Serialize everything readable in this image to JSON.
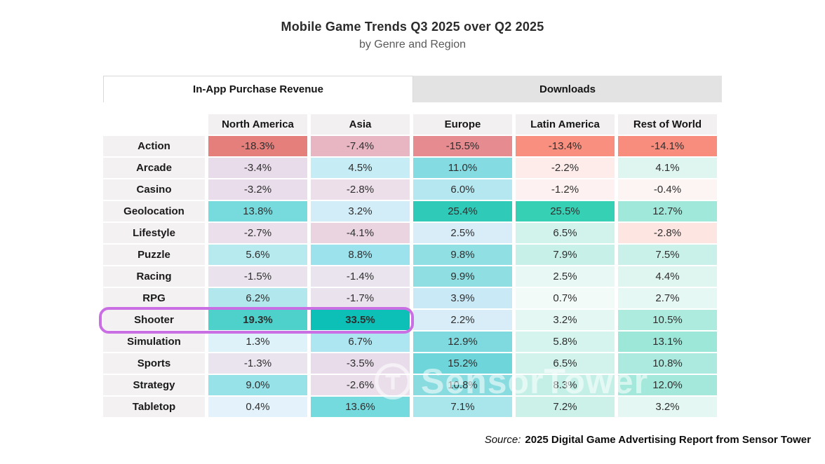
{
  "title": "Mobile Game Trends Q3 2025 over Q2 2025",
  "subtitle": "by Genre and Region",
  "tabs": [
    {
      "label": "In-App Purchase Revenue",
      "active": true
    },
    {
      "label": "Downloads",
      "active": false
    }
  ],
  "watermark": {
    "text": "SensorTower"
  },
  "source": {
    "prefix": "Source:",
    "text": "2025 Digital Game Advertising Report from Sensor Tower"
  },
  "highlight": {
    "row": "Shooter",
    "row_index": 8,
    "col_span": 2,
    "color": "#c96fe3",
    "bold_cells": [
      [
        8,
        0
      ],
      [
        8,
        1
      ]
    ]
  },
  "colors": {
    "header_bg": "#f2f0f0",
    "label_bg": "#f3f1f1",
    "tab_inactive_bg": "#e4e3e3",
    "max_positive": "#0cc0b7",
    "max_negative": "#e57f7c"
  },
  "chart_data": {
    "type": "heatmap",
    "title": "Mobile Game Trends Q3 2025 over Q2 2025",
    "subtitle": "by Genre and Region",
    "unit": "%",
    "columns": [
      "North America",
      "Asia",
      "Europe",
      "Latin America",
      "Rest of World"
    ],
    "rows": [
      "Action",
      "Arcade",
      "Casino",
      "Geolocation",
      "Lifestyle",
      "Puzzle",
      "Racing",
      "RPG",
      "Shooter",
      "Simulation",
      "Sports",
      "Strategy",
      "Tabletop"
    ],
    "values": [
      [
        -18.3,
        -7.4,
        -15.5,
        -13.4,
        -14.1
      ],
      [
        -3.4,
        4.5,
        11.0,
        -2.2,
        4.1
      ],
      [
        -3.2,
        -2.8,
        6.0,
        -1.2,
        -0.4
      ],
      [
        13.8,
        3.2,
        25.4,
        25.5,
        12.7
      ],
      [
        -2.7,
        -4.1,
        2.5,
        6.5,
        -2.8
      ],
      [
        5.6,
        8.8,
        9.8,
        7.9,
        7.5
      ],
      [
        -1.5,
        -1.4,
        9.9,
        2.5,
        4.4
      ],
      [
        6.2,
        -1.7,
        3.9,
        0.7,
        2.7
      ],
      [
        19.3,
        33.5,
        2.2,
        3.2,
        10.5
      ],
      [
        1.3,
        6.7,
        12.9,
        5.8,
        13.1
      ],
      [
        -1.3,
        -3.5,
        15.2,
        6.5,
        10.8
      ],
      [
        9.0,
        -2.6,
        10.8,
        8.3,
        12.0
      ],
      [
        0.4,
        13.6,
        7.1,
        7.2,
        3.2
      ]
    ],
    "cell_colors": [
      [
        "#e57f7c",
        "#e7b6c2",
        "#e68b8f",
        "#f9907f",
        "#f98d7d"
      ],
      [
        "#e9dcea",
        "#c6edf6",
        "#84dce2",
        "#fdecea",
        "#def5f0"
      ],
      [
        "#e9ddeb",
        "#ecdfe9",
        "#b5e7f1",
        "#fdf2f1",
        "#fcf5f4"
      ],
      [
        "#77dbde",
        "#d3edf8",
        "#2fcab8",
        "#36d1b5",
        "#a0e8da"
      ],
      [
        "#eadfeb",
        "#ead4e0",
        "#d8edf8",
        "#d2f3ec",
        "#fde5e2"
      ],
      [
        "#b7eaef",
        "#9be2ec",
        "#90dfe3",
        "#c7f0e8",
        "#caf1e9"
      ],
      [
        "#eae3ee",
        "#eae4ee",
        "#8edee2",
        "#e8f8f4",
        "#dff6f0"
      ],
      [
        "#b2e8ed",
        "#eae2ed",
        "#c9e9f7",
        "#f3fbf9",
        "#e6f8f3"
      ],
      [
        "#4ed1cb",
        "#0cc0b7",
        "#d8edf8",
        "#e4f7f2",
        "#aeebdf"
      ],
      [
        "#def2fa",
        "#ade5f1",
        "#7edade",
        "#d5f4ed",
        "#9ce7d8"
      ],
      [
        "#eae4ee",
        "#e8dbea",
        "#6ed5da",
        "#d2f3ec",
        "#ace9de"
      ],
      [
        "#97e2e9",
        "#e9dee9",
        "#88dce0",
        "#c4efe7",
        "#a4e8db"
      ],
      [
        "#e4f3fb",
        "#75dade",
        "#a8e6ec",
        "#ccf1e9",
        "#e4f7f2"
      ]
    ],
    "legend_position": "none",
    "grid": false
  }
}
